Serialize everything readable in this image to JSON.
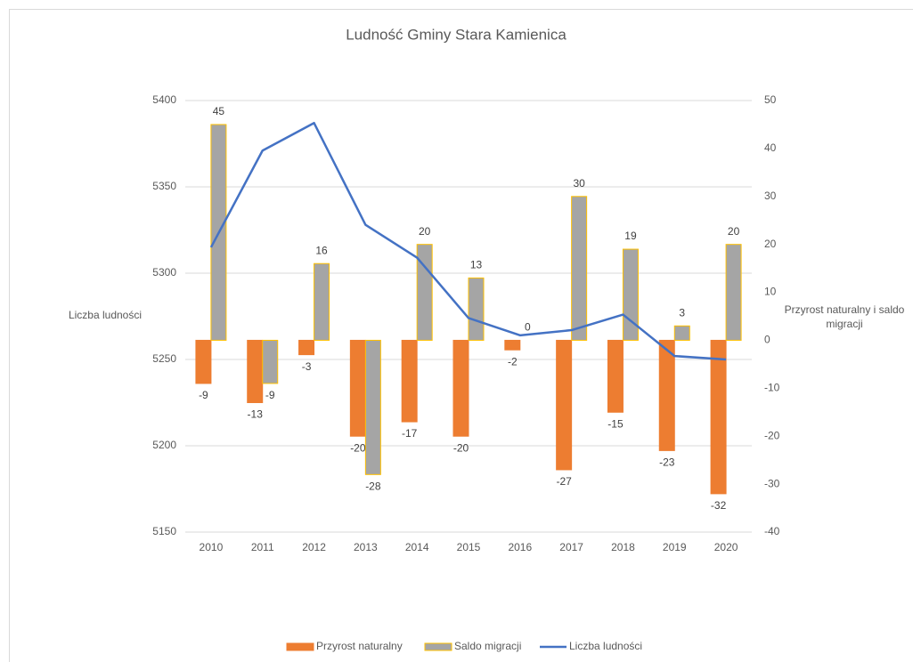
{
  "chart_data": {
    "type": "bar",
    "title": "Ludność Gminy Stara Kamienica",
    "y_label": "Liczba ludności",
    "y2_label": "Przyrost naturalny i saldo migracji",
    "categories": [
      "2010",
      "2011",
      "2012",
      "2013",
      "2014",
      "2015",
      "2016",
      "2017",
      "2018",
      "2019",
      "2020"
    ],
    "series": [
      {
        "name": "Przyrost naturalny",
        "type": "bar",
        "axis": "y2",
        "color": "#ed7d31",
        "values": [
          -9,
          -13,
          -3,
          -20,
          -17,
          -20,
          -2,
          -27,
          -15,
          -23,
          -32
        ]
      },
      {
        "name": "Saldo migracji",
        "type": "bar",
        "axis": "y2",
        "color": "#a5a5a5",
        "edge": "#ffc000",
        "values": [
          45,
          -9,
          16,
          -28,
          20,
          13,
          0,
          30,
          19,
          3,
          20
        ]
      },
      {
        "name": "Liczba ludności",
        "type": "line",
        "color": "#4472c4",
        "values": [
          5315,
          5371,
          5387,
          5328,
          5309,
          5274,
          5264,
          5267,
          5276,
          5252,
          5250
        ]
      }
    ],
    "ylim": [
      5150,
      5400
    ],
    "yticks": [
      5150,
      5200,
      5250,
      5300,
      5350,
      5400
    ],
    "y2lim": [
      -40,
      50
    ],
    "y2ticks": [
      -40,
      -30,
      -20,
      -10,
      0,
      10,
      20,
      30,
      40,
      50
    ],
    "legend": "bottom"
  }
}
